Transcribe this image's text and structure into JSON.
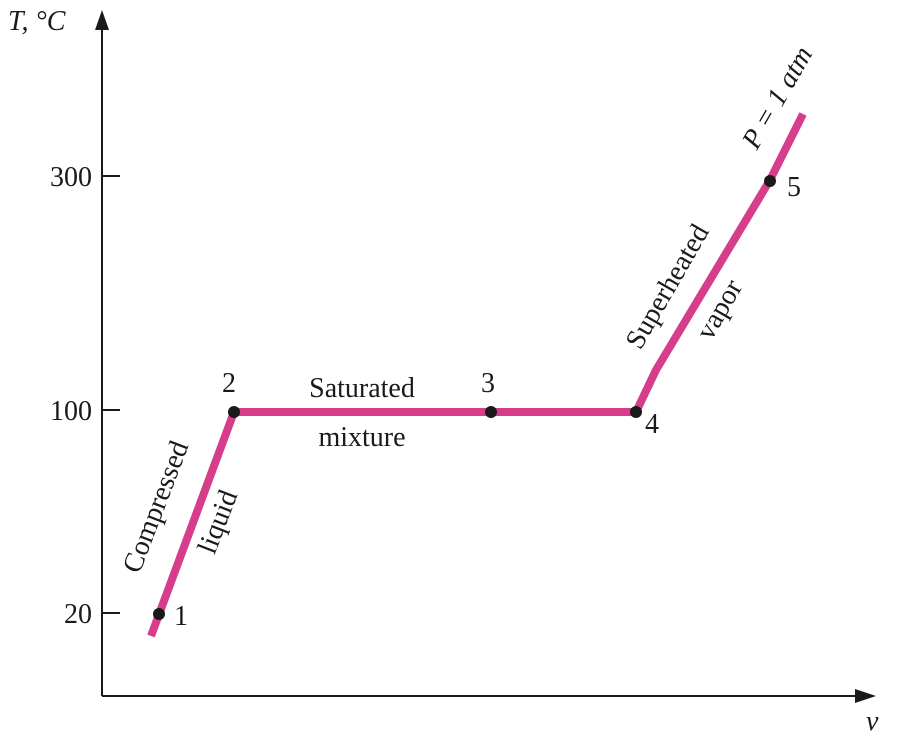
{
  "diagram": {
    "y_axis_label": "T, °C",
    "x_axis_label": "v",
    "y_ticks": [
      "300",
      "100",
      "20"
    ],
    "pressure_label": "P = 1 atm",
    "line_color": "#d63d8a",
    "points": [
      "1",
      "2",
      "3",
      "4",
      "5"
    ],
    "regions": {
      "compressed_line1": "Compressed",
      "compressed_line2": "liquid",
      "saturated_line1": "Saturated",
      "saturated_line2": "mixture",
      "superheated_line1": "Superheated",
      "superheated_line2": "vapor"
    }
  }
}
